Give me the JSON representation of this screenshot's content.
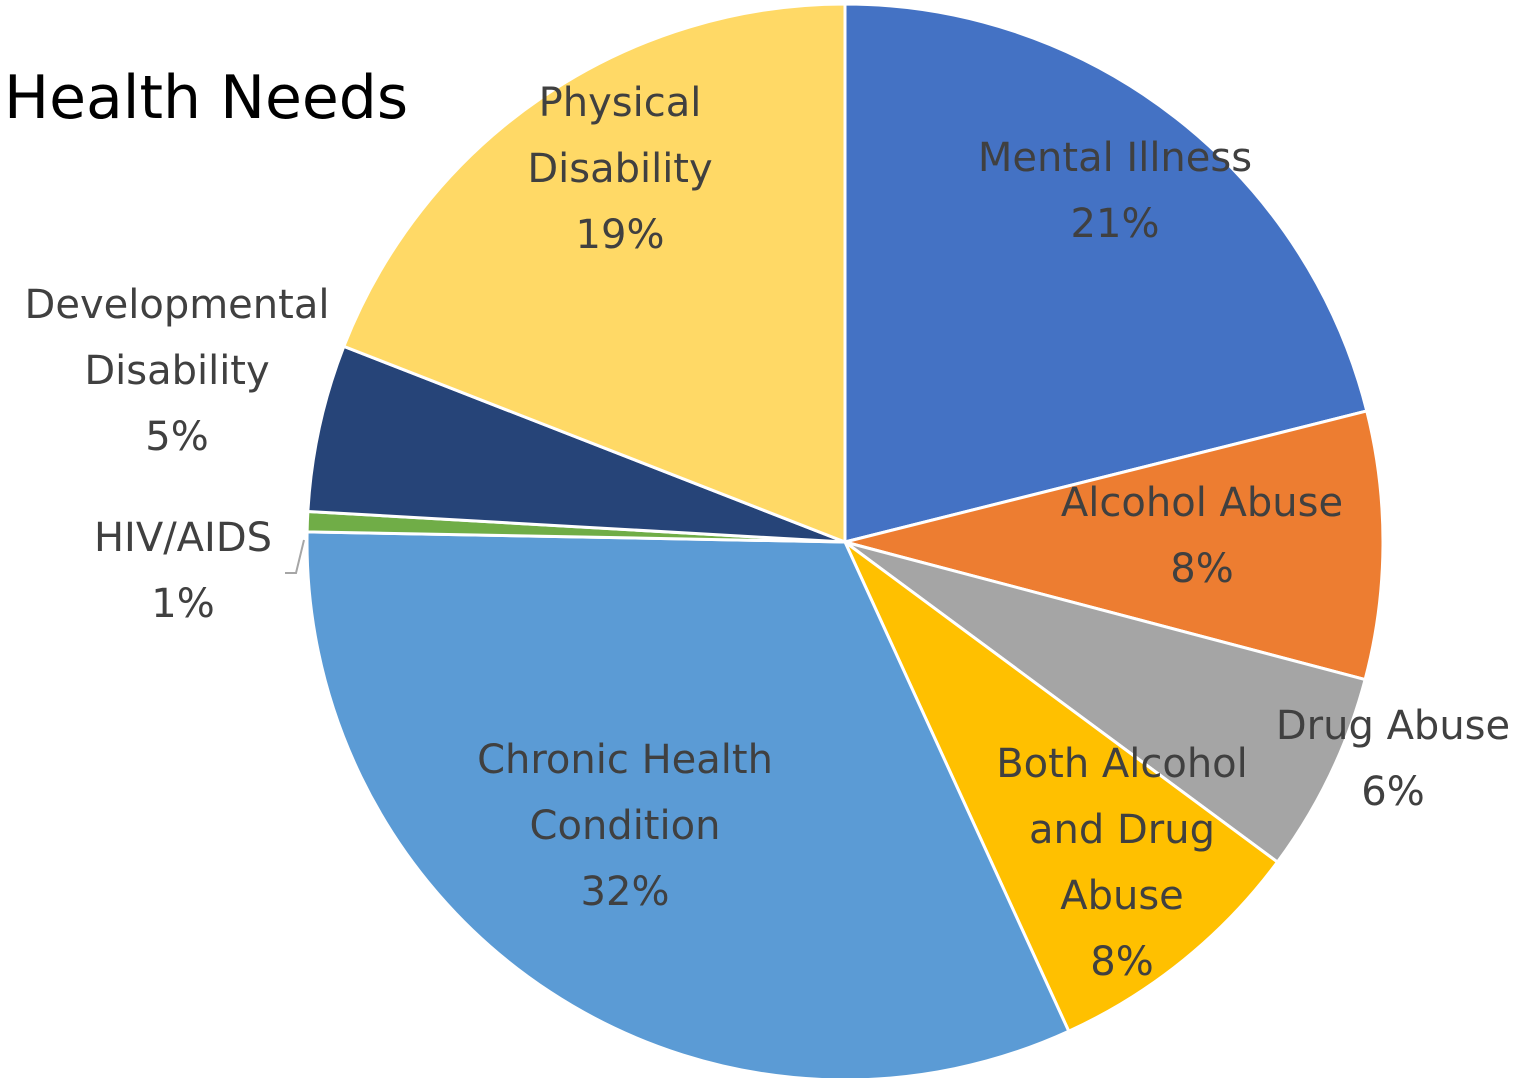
{
  "chart_data": {
    "type": "pie",
    "title": "Health Needs",
    "slices": [
      {
        "name": "Mental Illness",
        "label_lines": [
          "Mental Illness"
        ],
        "value": 21,
        "pct_label": "21%",
        "color": "#4472C4"
      },
      {
        "name": "Alcohol Abuse",
        "label_lines": [
          "Alcohol Abuse"
        ],
        "value": 8,
        "pct_label": "8%",
        "color": "#ED7D31"
      },
      {
        "name": "Drug Abuse",
        "label_lines": [
          "Drug Abuse"
        ],
        "value": 6,
        "pct_label": "6%",
        "color": "#A5A5A5"
      },
      {
        "name": "Both Alcohol and Drug Abuse",
        "label_lines": [
          "Both Alcohol",
          "and Drug",
          "Abuse"
        ],
        "value": 8,
        "pct_label": "8%",
        "color": "#FFC000"
      },
      {
        "name": "Chronic Health Condition",
        "label_lines": [
          "Chronic Health",
          "Condition"
        ],
        "value": 32,
        "pct_label": "32%",
        "color": "#5B9BD5"
      },
      {
        "name": "HIV/AIDS",
        "label_lines": [
          "HIV/AIDS"
        ],
        "value": 0.6,
        "pct_label": "1%",
        "color": "#70AD47"
      },
      {
        "name": "Developmental Disability",
        "label_lines": [
          "Developmental",
          "Disability"
        ],
        "value": 5,
        "pct_label": "5%",
        "color": "#264478"
      },
      {
        "name": "Physical Disability",
        "label_lines": [
          "Physical",
          "Disability"
        ],
        "value": 19,
        "pct_label": "19%",
        "color": "#FFD966"
      }
    ],
    "start_angle": "12 o'clock",
    "direction": "clockwise",
    "data_labels": "category name and percentage",
    "legend": "none"
  }
}
